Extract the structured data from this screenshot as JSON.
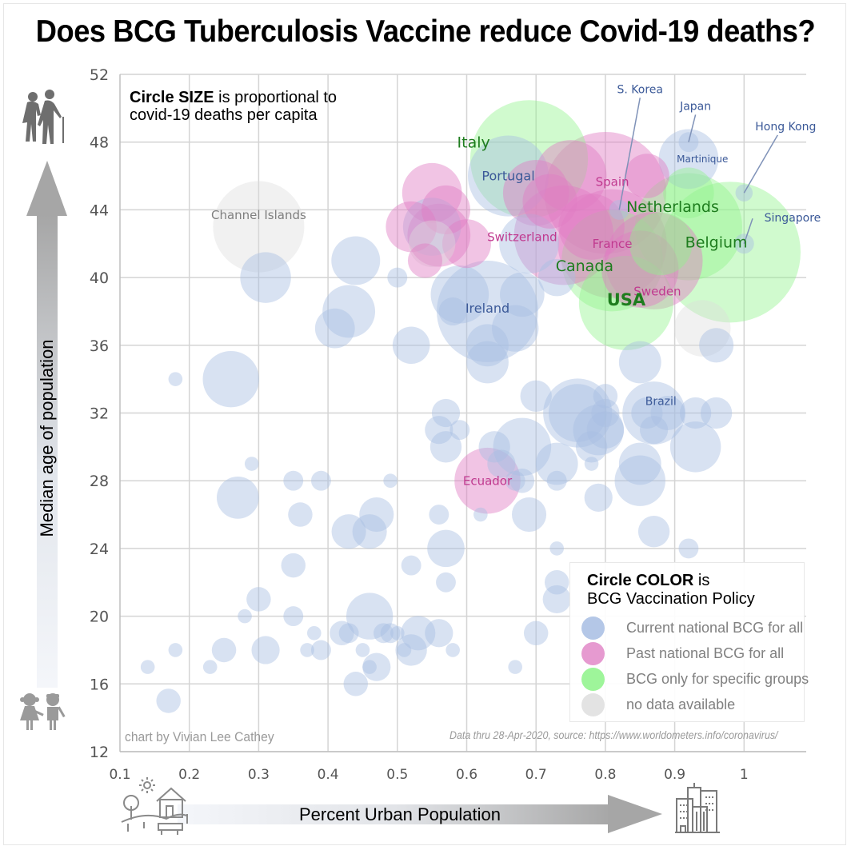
{
  "title": "Does BCG Tuberculosis Vaccine reduce Covid-19 deaths?",
  "size_note": {
    "bold": "Circle SIZE",
    "rest1": " is proportional to",
    "line2": "covid-19 deaths per capita"
  },
  "legend": {
    "title_bold": "Circle COLOR",
    "title_rest": " is",
    "title_line2": "BCG Vaccination Policy",
    "items": [
      {
        "label": "Current national BCG for all",
        "color": "#b4c7e7"
      },
      {
        "label": "Past national BCG for all",
        "color": "#e69ad0"
      },
      {
        "label": "BCG only for specific groups",
        "color": "#9ef59a"
      },
      {
        "label": "no data available",
        "color": "#e3e3e3"
      }
    ]
  },
  "credit": "chart by Vivian Lee Cathey",
  "source": "Data thru 28-Apr-2020, source: https://www.worldometers.info/coronavirus/",
  "colors": {
    "current": "#a9bfe3",
    "past": "#e07cc4",
    "specific": "#8ff28a",
    "nodata": "#dcdcdc",
    "label_current": "#3b5998",
    "label_past": "#c0398f",
    "label_specific": "#1e7d1e",
    "label_nodata": "#7f7f7f"
  },
  "chart_data": {
    "type": "scatter",
    "title": "Does BCG Tuberculosis Vaccine reduce Covid-19 deaths?",
    "xlabel": "Percent Urban Population",
    "ylabel": "Median age of population",
    "xlim": [
      0.1,
      1.09
    ],
    "ylim": [
      12,
      52
    ],
    "xticks": [
      "0.1",
      "0.2",
      "0.3",
      "0.4",
      "0.5",
      "0.6",
      "0.7",
      "0.8",
      "0.9",
      "1"
    ],
    "xtick_values": [
      0.1,
      0.2,
      0.3,
      0.4,
      0.5,
      0.6,
      0.7,
      0.8,
      0.9,
      1.0
    ],
    "yticks": [
      "12",
      "16",
      "20",
      "24",
      "28",
      "32",
      "36",
      "40",
      "44",
      "48",
      "52"
    ],
    "ytick_values": [
      12,
      16,
      20,
      24,
      28,
      32,
      36,
      40,
      44,
      48,
      52
    ],
    "grid": true,
    "size_encoding": "covid-19 deaths per capita (relative)",
    "color_encoding": "BCG Vaccination Policy",
    "points": [
      {
        "name": "Belgium",
        "x": 0.98,
        "y": 41.5,
        "size": 100,
        "group": "specific",
        "label": true
      },
      {
        "name": "Italy",
        "x": 0.69,
        "y": 47.0,
        "size": 70,
        "group": "specific",
        "label": true
      },
      {
        "name": "Spain",
        "x": 0.8,
        "y": 45.0,
        "size": 75,
        "group": "past",
        "label": true
      },
      {
        "name": "Netherlands",
        "x": 0.92,
        "y": 43.0,
        "size": 58,
        "group": "specific",
        "label": true
      },
      {
        "name": "France",
        "x": 0.81,
        "y": 42.0,
        "size": 60,
        "group": "past",
        "label": true
      },
      {
        "name": "Switzerland",
        "x": 0.74,
        "y": 42.5,
        "size": 50,
        "group": "past",
        "label": true
      },
      {
        "name": "Canada",
        "x": 0.81,
        "y": 41.0,
        "size": 52,
        "group": "specific",
        "label": true
      },
      {
        "name": "Sweden",
        "x": 0.87,
        "y": 41.0,
        "size": 48,
        "group": "past",
        "label": true
      },
      {
        "name": "USA",
        "x": 0.83,
        "y": 38.5,
        "size": 45,
        "group": "specific",
        "label": true
      },
      {
        "name": "Ireland",
        "x": 0.63,
        "y": 38.0,
        "size": 52,
        "group": "current",
        "label": true
      },
      {
        "name": "Portugal",
        "x": 0.66,
        "y": 46.0,
        "size": 33,
        "group": "current",
        "label": true
      },
      {
        "name": "Channel Islands",
        "x": 0.3,
        "y": 43.0,
        "size": 42,
        "group": "nodata",
        "label": true
      },
      {
        "name": "Ecuador",
        "x": 0.63,
        "y": 28.0,
        "size": 22,
        "group": "past",
        "label": true
      },
      {
        "name": "Brazil",
        "x": 0.87,
        "y": 32.0,
        "size": 20,
        "group": "current",
        "label": true
      },
      {
        "name": "Martinique",
        "x": 0.92,
        "y": 47.0,
        "size": 18,
        "group": "current",
        "label": true
      },
      {
        "name": "S. Korea",
        "x": 0.82,
        "y": 44.0,
        "size": 2,
        "group": "current",
        "label": true,
        "label_x": 0.85,
        "label_y": 50.9
      },
      {
        "name": "Japan",
        "x": 0.92,
        "y": 48.0,
        "size": 2,
        "group": "current",
        "label": true,
        "label_x": 0.93,
        "label_y": 49.9
      },
      {
        "name": "Hong Kong",
        "x": 1.0,
        "y": 45.0,
        "size": 1.5,
        "group": "current",
        "label": true,
        "label_x": 1.06,
        "label_y": 48.7
      },
      {
        "name": "Singapore",
        "x": 1.0,
        "y": 42.0,
        "size": 2,
        "group": "current",
        "label": true,
        "label_x": 1.07,
        "label_y": 43.3
      },
      {
        "name": "",
        "x": 0.55,
        "y": 45.0,
        "size": 18,
        "group": "past"
      },
      {
        "name": "",
        "x": 0.55,
        "y": 43.0,
        "size": 17,
        "group": "current"
      },
      {
        "name": "",
        "x": 0.56,
        "y": 42.5,
        "size": 20,
        "group": "past"
      },
      {
        "name": "",
        "x": 0.57,
        "y": 44.0,
        "size": 12,
        "group": "past"
      },
      {
        "name": "",
        "x": 0.52,
        "y": 43.0,
        "size": 13,
        "group": "past"
      },
      {
        "name": "",
        "x": 0.6,
        "y": 42.0,
        "size": 12,
        "group": "past"
      },
      {
        "name": "",
        "x": 0.55,
        "y": 42.0,
        "size": 11,
        "group": "nodata"
      },
      {
        "name": "",
        "x": 0.54,
        "y": 41.0,
        "size": 6,
        "group": "past"
      },
      {
        "name": "",
        "x": 0.69,
        "y": 42.0,
        "size": 18,
        "group": "current"
      },
      {
        "name": "",
        "x": 0.7,
        "y": 45.0,
        "size": 22,
        "group": "past"
      },
      {
        "name": "",
        "x": 0.75,
        "y": 46.0,
        "size": 26,
        "group": "past"
      },
      {
        "name": "",
        "x": 0.72,
        "y": 44.5,
        "size": 15,
        "group": "past"
      },
      {
        "name": "",
        "x": 0.86,
        "y": 46.0,
        "size": 10,
        "group": "past"
      },
      {
        "name": "",
        "x": 0.92,
        "y": 45.0,
        "size": 13,
        "group": "specific"
      },
      {
        "name": "",
        "x": 0.88,
        "y": 42.0,
        "size": 20,
        "group": "specific"
      },
      {
        "name": "",
        "x": 0.85,
        "y": 40.5,
        "size": 30,
        "group": "past"
      },
      {
        "name": "",
        "x": 0.78,
        "y": 43.0,
        "size": 22,
        "group": "past"
      },
      {
        "name": "",
        "x": 0.94,
        "y": 37.0,
        "size": 16,
        "group": "nodata"
      },
      {
        "name": "",
        "x": 0.96,
        "y": 36.0,
        "size": 6,
        "group": "current"
      },
      {
        "name": "",
        "x": 0.31,
        "y": 40.0,
        "size": 13,
        "group": "current"
      },
      {
        "name": "",
        "x": 0.44,
        "y": 41.0,
        "size": 12,
        "group": "current"
      },
      {
        "name": "",
        "x": 0.43,
        "y": 38.0,
        "size": 14,
        "group": "current"
      },
      {
        "name": "",
        "x": 0.41,
        "y": 37.0,
        "size": 8,
        "group": "current"
      },
      {
        "name": "",
        "x": 0.5,
        "y": 40.0,
        "size": 2,
        "group": "current"
      },
      {
        "name": "",
        "x": 0.52,
        "y": 36.0,
        "size": 7,
        "group": "current"
      },
      {
        "name": "",
        "x": 0.59,
        "y": 39.0,
        "size": 17,
        "group": "current"
      },
      {
        "name": "",
        "x": 0.63,
        "y": 36.0,
        "size": 9,
        "group": "current"
      },
      {
        "name": "",
        "x": 0.63,
        "y": 35.0,
        "size": 9,
        "group": "current"
      },
      {
        "name": "",
        "x": 0.67,
        "y": 37.0,
        "size": 11,
        "group": "current"
      },
      {
        "name": "",
        "x": 0.68,
        "y": 39.0,
        "size": 10,
        "group": "current"
      },
      {
        "name": "",
        "x": 0.58,
        "y": 38.0,
        "size": 4,
        "group": "current"
      },
      {
        "name": "",
        "x": 0.73,
        "y": 40.0,
        "size": 7,
        "group": "current"
      },
      {
        "name": "",
        "x": 0.26,
        "y": 34.0,
        "size": 16,
        "group": "current"
      },
      {
        "name": "",
        "x": 0.18,
        "y": 34.0,
        "size": 1,
        "group": "current"
      },
      {
        "name": "",
        "x": 0.85,
        "y": 35.0,
        "size": 9,
        "group": "current"
      },
      {
        "name": "",
        "x": 0.76,
        "y": 32.0,
        "size": 24,
        "group": "current"
      },
      {
        "name": "",
        "x": 0.76,
        "y": 32.0,
        "size": 17,
        "group": "current"
      },
      {
        "name": "",
        "x": 0.79,
        "y": 31.0,
        "size": 13,
        "group": "current"
      },
      {
        "name": "",
        "x": 0.8,
        "y": 31.0,
        "size": 7,
        "group": "current"
      },
      {
        "name": "",
        "x": 0.78,
        "y": 30.0,
        "size": 5,
        "group": "current"
      },
      {
        "name": "",
        "x": 0.7,
        "y": 33.0,
        "size": 5,
        "group": "current"
      },
      {
        "name": "",
        "x": 0.8,
        "y": 33.0,
        "size": 3,
        "group": "current"
      },
      {
        "name": "",
        "x": 0.8,
        "y": 32.0,
        "size": 4,
        "group": "current"
      },
      {
        "name": "",
        "x": 0.86,
        "y": 32.0,
        "size": 5,
        "group": "current"
      },
      {
        "name": "",
        "x": 0.89,
        "y": 32.0,
        "size": 6,
        "group": "current"
      },
      {
        "name": "",
        "x": 0.93,
        "y": 32.0,
        "size": 5,
        "group": "current"
      },
      {
        "name": "",
        "x": 0.96,
        "y": 32.0,
        "size": 5,
        "group": "current"
      },
      {
        "name": "",
        "x": 0.87,
        "y": 31.0,
        "size": 4,
        "group": "current"
      },
      {
        "name": "",
        "x": 0.57,
        "y": 32.0,
        "size": 4,
        "group": "current"
      },
      {
        "name": "",
        "x": 0.56,
        "y": 31.0,
        "size": 4,
        "group": "current"
      },
      {
        "name": "",
        "x": 0.59,
        "y": 31.0,
        "size": 2,
        "group": "current"
      },
      {
        "name": "",
        "x": 0.57,
        "y": 30.0,
        "size": 5,
        "group": "current"
      },
      {
        "name": "",
        "x": 0.64,
        "y": 30.0,
        "size": 5,
        "group": "current"
      },
      {
        "name": "",
        "x": 0.68,
        "y": 30.0,
        "size": 17,
        "group": "current"
      },
      {
        "name": "",
        "x": 0.65,
        "y": 29.0,
        "size": 4,
        "group": "current"
      },
      {
        "name": "",
        "x": 0.73,
        "y": 29.0,
        "size": 9,
        "group": "current"
      },
      {
        "name": "",
        "x": 0.85,
        "y": 29.0,
        "size": 9,
        "group": "current"
      },
      {
        "name": "",
        "x": 0.93,
        "y": 30.0,
        "size": 13,
        "group": "current"
      },
      {
        "name": "",
        "x": 0.85,
        "y": 28.0,
        "size": 13,
        "group": "current"
      },
      {
        "name": "",
        "x": 0.68,
        "y": 28.0,
        "size": 3,
        "group": "current"
      },
      {
        "name": "",
        "x": 0.67,
        "y": 28.0,
        "size": 2,
        "group": "current"
      },
      {
        "name": "",
        "x": 0.73,
        "y": 28.0,
        "size": 2,
        "group": "current"
      },
      {
        "name": "",
        "x": 0.78,
        "y": 29.0,
        "size": 1,
        "group": "current"
      },
      {
        "name": "",
        "x": 0.79,
        "y": 27.0,
        "size": 4,
        "group": "current"
      },
      {
        "name": "",
        "x": 0.69,
        "y": 26.0,
        "size": 6,
        "group": "current"
      },
      {
        "name": "",
        "x": 0.62,
        "y": 26.0,
        "size": 1,
        "group": "current"
      },
      {
        "name": "",
        "x": 0.56,
        "y": 26.0,
        "size": 2,
        "group": "current"
      },
      {
        "name": "",
        "x": 0.87,
        "y": 25.0,
        "size": 5,
        "group": "current"
      },
      {
        "name": "",
        "x": 0.27,
        "y": 27.0,
        "size": 9,
        "group": "current"
      },
      {
        "name": "",
        "x": 0.35,
        "y": 28.0,
        "size": 2,
        "group": "current"
      },
      {
        "name": "",
        "x": 0.39,
        "y": 28.0,
        "size": 2,
        "group": "current"
      },
      {
        "name": "",
        "x": 0.29,
        "y": 29.0,
        "size": 1,
        "group": "current"
      },
      {
        "name": "",
        "x": 0.36,
        "y": 26.0,
        "size": 3,
        "group": "current"
      },
      {
        "name": "",
        "x": 0.47,
        "y": 26.0,
        "size": 6,
        "group": "current"
      },
      {
        "name": "",
        "x": 0.43,
        "y": 25.0,
        "size": 6,
        "group": "current"
      },
      {
        "name": "",
        "x": 0.46,
        "y": 25.0,
        "size": 6,
        "group": "current"
      },
      {
        "name": "",
        "x": 0.49,
        "y": 28.0,
        "size": 1,
        "group": "current"
      },
      {
        "name": "",
        "x": 0.57,
        "y": 24.0,
        "size": 7,
        "group": "current"
      },
      {
        "name": "",
        "x": 0.52,
        "y": 23.0,
        "size": 2,
        "group": "current"
      },
      {
        "name": "",
        "x": 0.35,
        "y": 23.0,
        "size": 3,
        "group": "current"
      },
      {
        "name": "",
        "x": 0.57,
        "y": 22.0,
        "size": 2,
        "group": "current"
      },
      {
        "name": "",
        "x": 0.73,
        "y": 24.0,
        "size": 1,
        "group": "current"
      },
      {
        "name": "",
        "x": 0.73,
        "y": 22.0,
        "size": 3,
        "group": "current"
      },
      {
        "name": "",
        "x": 0.73,
        "y": 21.0,
        "size": 4,
        "group": "current"
      },
      {
        "name": "",
        "x": 0.92,
        "y": 24.0,
        "size": 2,
        "group": "current"
      },
      {
        "name": "",
        "x": 0.3,
        "y": 21.0,
        "size": 3,
        "group": "current"
      },
      {
        "name": "",
        "x": 0.28,
        "y": 20.0,
        "size": 1,
        "group": "current"
      },
      {
        "name": "",
        "x": 0.35,
        "y": 20.0,
        "size": 2,
        "group": "current"
      },
      {
        "name": "",
        "x": 0.46,
        "y": 20.0,
        "size": 11,
        "group": "current"
      },
      {
        "name": "",
        "x": 0.42,
        "y": 19.0,
        "size": 3,
        "group": "current"
      },
      {
        "name": "",
        "x": 0.43,
        "y": 19.0,
        "size": 2,
        "group": "current"
      },
      {
        "name": "",
        "x": 0.48,
        "y": 19.0,
        "size": 2,
        "group": "current"
      },
      {
        "name": "",
        "x": 0.49,
        "y": 19.0,
        "size": 2,
        "group": "current"
      },
      {
        "name": "",
        "x": 0.53,
        "y": 19.0,
        "size": 6,
        "group": "current"
      },
      {
        "name": "",
        "x": 0.5,
        "y": 19.0,
        "size": 1,
        "group": "current"
      },
      {
        "name": "",
        "x": 0.38,
        "y": 19.0,
        "size": 1,
        "group": "current"
      },
      {
        "name": "",
        "x": 0.56,
        "y": 19.0,
        "size": 4,
        "group": "current"
      },
      {
        "name": "",
        "x": 0.7,
        "y": 19.0,
        "size": 3,
        "group": "current"
      },
      {
        "name": "",
        "x": 0.52,
        "y": 18.0,
        "size": 5,
        "group": "current"
      },
      {
        "name": "",
        "x": 0.31,
        "y": 18.0,
        "size": 4,
        "group": "current"
      },
      {
        "name": "",
        "x": 0.25,
        "y": 18.0,
        "size": 3,
        "group": "current"
      },
      {
        "name": "",
        "x": 0.18,
        "y": 18.0,
        "size": 1,
        "group": "current"
      },
      {
        "name": "",
        "x": 0.37,
        "y": 18.0,
        "size": 1,
        "group": "current"
      },
      {
        "name": "",
        "x": 0.39,
        "y": 18.0,
        "size": 2,
        "group": "current"
      },
      {
        "name": "",
        "x": 0.45,
        "y": 18.0,
        "size": 1,
        "group": "current"
      },
      {
        "name": "",
        "x": 0.51,
        "y": 18.0,
        "size": 1,
        "group": "current"
      },
      {
        "name": "",
        "x": 0.58,
        "y": 18.0,
        "size": 1,
        "group": "current"
      },
      {
        "name": "",
        "x": 0.47,
        "y": 17.0,
        "size": 4,
        "group": "current"
      },
      {
        "name": "",
        "x": 0.46,
        "y": 17.0,
        "size": 1,
        "group": "current"
      },
      {
        "name": "",
        "x": 0.23,
        "y": 17.0,
        "size": 1,
        "group": "current"
      },
      {
        "name": "",
        "x": 0.14,
        "y": 17.0,
        "size": 1,
        "group": "current"
      },
      {
        "name": "",
        "x": 0.67,
        "y": 17.0,
        "size": 1,
        "group": "current"
      },
      {
        "name": "",
        "x": 0.44,
        "y": 16.0,
        "size": 3,
        "group": "current"
      },
      {
        "name": "",
        "x": 0.17,
        "y": 15.0,
        "size": 3,
        "group": "current"
      }
    ]
  },
  "icons": {
    "elderly": "elderly-couple-icon",
    "children": "children-icon",
    "rural": "rural-house-icon",
    "city": "city-buildings-icon"
  }
}
